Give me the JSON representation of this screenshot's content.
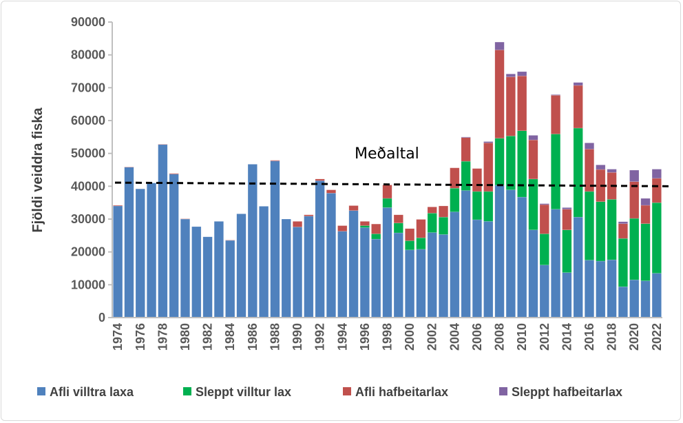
{
  "chart_data": {
    "type": "bar",
    "stacked": true,
    "title": "",
    "xlabel": "",
    "ylabel": "Fjöldi veiddra fiska",
    "ylim": [
      0,
      90000
    ],
    "yticks": [
      0,
      10000,
      20000,
      30000,
      40000,
      50000,
      60000,
      70000,
      80000,
      90000
    ],
    "grid": false,
    "legend_position": "bottom",
    "categories": [
      1974,
      1975,
      1976,
      1977,
      1978,
      1979,
      1980,
      1981,
      1982,
      1983,
      1984,
      1985,
      1986,
      1987,
      1988,
      1989,
      1990,
      1991,
      1992,
      1993,
      1994,
      1995,
      1996,
      1997,
      1998,
      1999,
      2000,
      2001,
      2002,
      2003,
      2004,
      2005,
      2006,
      2007,
      2008,
      2009,
      2010,
      2011,
      2012,
      2013,
      2014,
      2015,
      2016,
      2017,
      2018,
      2019,
      2020,
      2021,
      2022
    ],
    "series": [
      {
        "name": "Afli villtra laxa",
        "color": "#4F81BD",
        "values": [
          34000,
          45800,
          39200,
          41000,
          52700,
          43700,
          30000,
          27700,
          24600,
          29300,
          23500,
          31600,
          46700,
          33900,
          47700,
          30000,
          27600,
          30900,
          41700,
          37900,
          26300,
          32600,
          27400,
          23900,
          33500,
          25800,
          20600,
          20800,
          25900,
          25300,
          32200,
          38700,
          29800,
          29300,
          40300,
          38900,
          36700,
          26700,
          16000,
          33000,
          13700,
          30600,
          17500,
          17200,
          17600,
          9400,
          11500,
          11200,
          13500
        ]
      },
      {
        "name": "Sleppt villtur lax",
        "color": "#00B050",
        "values": [
          0,
          0,
          0,
          0,
          0,
          0,
          0,
          0,
          0,
          0,
          0,
          0,
          0,
          0,
          0,
          0,
          0,
          0,
          0,
          0,
          0,
          0,
          600,
          1600,
          2800,
          3000,
          2800,
          3500,
          5900,
          5300,
          7200,
          8900,
          8600,
          9100,
          14300,
          16400,
          20200,
          15500,
          9500,
          22900,
          13000,
          27100,
          20900,
          18100,
          18400,
          14700,
          18700,
          17400,
          21500
        ]
      },
      {
        "name": "Afli hafbeitarlax",
        "color": "#C0504D",
        "values": [
          200,
          100,
          0,
          0,
          100,
          200,
          100,
          0,
          0,
          0,
          100,
          0,
          0,
          0,
          200,
          0,
          1700,
          400,
          500,
          1000,
          1700,
          1500,
          1300,
          3000,
          4100,
          2500,
          3700,
          5600,
          1900,
          3400,
          6200,
          7200,
          7000,
          14800,
          26900,
          18000,
          16700,
          11900,
          8900,
          11800,
          6300,
          13000,
          12900,
          9800,
          8200,
          4500,
          11200,
          5600,
          7400
        ]
      },
      {
        "name": "Sleppt hafbeitarlax",
        "color": "#8064A2",
        "values": [
          0,
          0,
          0,
          0,
          0,
          0,
          0,
          0,
          0,
          0,
          0,
          0,
          0,
          0,
          0,
          0,
          0,
          0,
          0,
          0,
          0,
          0,
          0,
          0,
          0,
          0,
          0,
          0,
          0,
          0,
          0,
          200,
          0,
          400,
          2400,
          900,
          1300,
          1400,
          300,
          200,
          500,
          900,
          1900,
          1400,
          1000,
          600,
          3500,
          2100,
          2800
        ]
      }
    ],
    "mean_line": {
      "label": "Meðaltal",
      "start_value": 41100,
      "end_value": 40000,
      "style": "dashed",
      "color": "#000000"
    }
  }
}
